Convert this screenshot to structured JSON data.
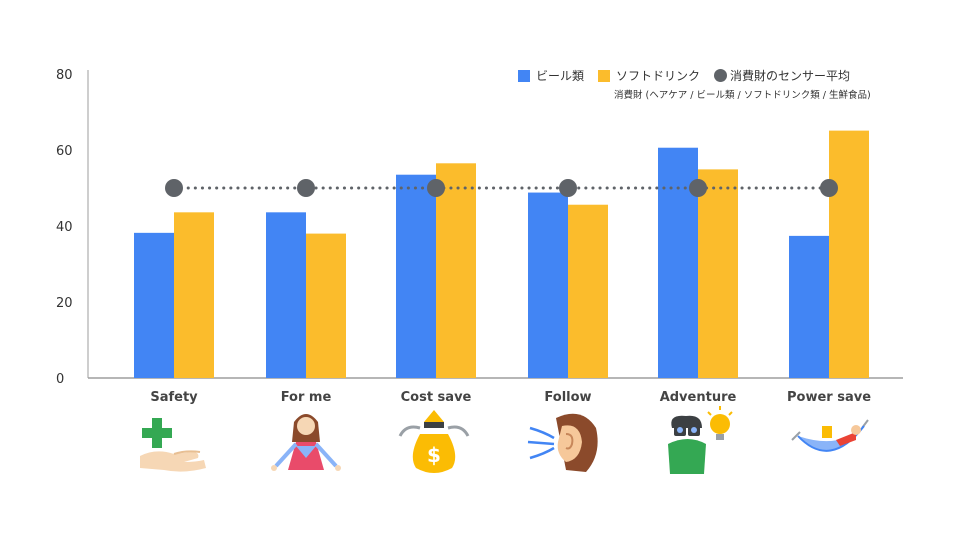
{
  "chart_data": {
    "type": "bar",
    "categories": [
      "Safety",
      "For me",
      "Cost save",
      "Follow",
      "Adventure",
      "Power save"
    ],
    "series": [
      {
        "name": "ビール類",
        "values": [
          38.2,
          43.6,
          53.5,
          48.8,
          60.6,
          37.4
        ],
        "color": "#4285f4"
      },
      {
        "name": "ソフトドリンク",
        "values": [
          43.6,
          38.0,
          56.5,
          45.6,
          54.9,
          65.1
        ],
        "color": "#fbbc2c"
      }
    ],
    "average": {
      "name": "消費財のセンサー平均",
      "value": 50,
      "color": "#5f6368"
    },
    "note": "消費財 (ヘアケア / ビール類 / ソフトドリンク類 / 生鮮食品)",
    "ylim": [
      0,
      80
    ],
    "yticks": [
      0,
      20,
      40,
      60,
      80
    ],
    "grid": false,
    "legend_position": "top-right"
  },
  "icons": [
    "first-aid-hand",
    "woman-self",
    "money-bag",
    "listening-ear",
    "binoculars-lightbulb",
    "person-hammock"
  ]
}
